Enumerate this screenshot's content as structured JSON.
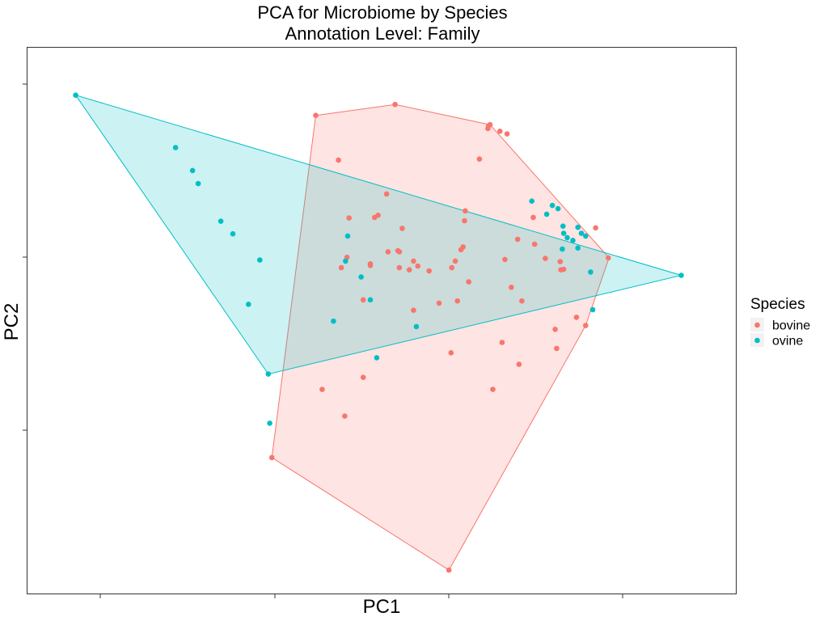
{
  "chart_data": {
    "type": "scatter",
    "title": "PCA for Microbiome by Species",
    "subtitle": "Annotation Level: Family",
    "xlabel": "PC1",
    "ylabel": "PC2",
    "xlim": [
      0,
      1000
    ],
    "ylim": [
      0,
      1000
    ],
    "grid": false,
    "legend": {
      "title": "Species",
      "position": "right"
    },
    "series": [
      {
        "name": "bovine",
        "color": "#F8766D",
        "points": [
          [
            407,
            876
          ],
          [
            519,
            896
          ],
          [
            651,
            857
          ],
          [
            653,
            859
          ],
          [
            650,
            852
          ],
          [
            667,
            847
          ],
          [
            677,
            842
          ],
          [
            638,
            796
          ],
          [
            439,
            794
          ],
          [
            507,
            732
          ],
          [
            495,
            693
          ],
          [
            490,
            689
          ],
          [
            618,
            701
          ],
          [
            454,
            688
          ],
          [
            529,
            669
          ],
          [
            714,
            689
          ],
          [
            617,
            683
          ],
          [
            802,
            670
          ],
          [
            692,
            649
          ],
          [
            716,
            640
          ],
          [
            523,
            628
          ],
          [
            612,
            630
          ],
          [
            615,
            635
          ],
          [
            451,
            616
          ],
          [
            509,
            626
          ],
          [
            525,
            626
          ],
          [
            545,
            609
          ],
          [
            604,
            609
          ],
          [
            484,
            604
          ],
          [
            484,
            601
          ],
          [
            674,
            612
          ],
          [
            731,
            614
          ],
          [
            752,
            608
          ],
          [
            820,
            615
          ],
          [
            443,
            597
          ],
          [
            599,
            597
          ],
          [
            757,
            594
          ],
          [
            753,
            593
          ],
          [
            551,
            600
          ],
          [
            525,
            597
          ],
          [
            623,
            571
          ],
          [
            539,
            593
          ],
          [
            567,
            591
          ],
          [
            683,
            561
          ],
          [
            474,
            538
          ],
          [
            607,
            536
          ],
          [
            698,
            536
          ],
          [
            581,
            532
          ],
          [
            775,
            506
          ],
          [
            545,
            519
          ],
          [
            788,
            491
          ],
          [
            745,
            484
          ],
          [
            670,
            460
          ],
          [
            747,
            449
          ],
          [
            598,
            441
          ],
          [
            694,
            420
          ],
          [
            474,
            396
          ],
          [
            416,
            374
          ],
          [
            657,
            374
          ],
          [
            448,
            325
          ],
          [
            345,
            249
          ],
          [
            595,
            43
          ]
        ],
        "hull": [
          [
            407,
            876
          ],
          [
            519,
            896
          ],
          [
            653,
            859
          ],
          [
            821,
            615
          ],
          [
            788,
            491
          ],
          [
            595,
            43
          ],
          [
            345,
            249
          ]
        ]
      },
      {
        "name": "ovine",
        "color": "#00BFC4",
        "points": [
          [
            68,
            913
          ],
          [
            209,
            817
          ],
          [
            233,
            775
          ],
          [
            241,
            751
          ],
          [
            273,
            682
          ],
          [
            290,
            659
          ],
          [
            328,
            611
          ],
          [
            312,
            530
          ],
          [
            340,
            402
          ],
          [
            342,
            312
          ],
          [
            712,
            719
          ],
          [
            741,
            711
          ],
          [
            749,
            705
          ],
          [
            733,
            695
          ],
          [
            756,
            673
          ],
          [
            777,
            671
          ],
          [
            757,
            660
          ],
          [
            782,
            660
          ],
          [
            762,
            652
          ],
          [
            788,
            655
          ],
          [
            770,
            647
          ],
          [
            777,
            633
          ],
          [
            755,
            631
          ],
          [
            452,
            655
          ],
          [
            449,
            609
          ],
          [
            471,
            580
          ],
          [
            484,
            538
          ],
          [
            432,
            499
          ],
          [
            549,
            489
          ],
          [
            493,
            432
          ],
          [
            795,
            589
          ],
          [
            798,
            520
          ],
          [
            923,
            583
          ]
        ],
        "hull": [
          [
            68,
            913
          ],
          [
            923,
            583
          ],
          [
            340,
            402
          ]
        ]
      }
    ]
  }
}
